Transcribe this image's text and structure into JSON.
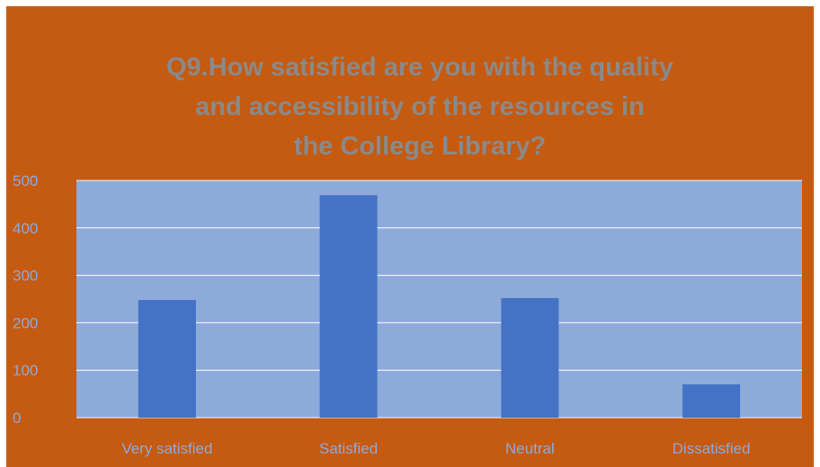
{
  "colors": {
    "frame_background": "#c55a11",
    "plot_background": "#8eaadb",
    "bar_fill": "#4472c4",
    "gridline": "#ffffff",
    "title_text": "#8a8a8a",
    "tick_text": "#8eaadb"
  },
  "chart_data": {
    "type": "bar",
    "title": "Q9.How satisfied are you with the quality and accessibility of the resources in the College Library?",
    "title_lines": [
      "Q9.How satisfied are you with the quality",
      "and accessibility of the resources in",
      "the College Library?"
    ],
    "categories": [
      "Very satisfied",
      "Satisfied",
      "Neutral",
      "Dissatisfied"
    ],
    "values": [
      248,
      469,
      252,
      70
    ],
    "ylim": [
      0,
      500
    ],
    "yticks": [
      "0",
      "100",
      "200",
      "300",
      "400",
      "500"
    ],
    "xlabel": "",
    "ylabel": "",
    "grid": true,
    "legend": false
  }
}
